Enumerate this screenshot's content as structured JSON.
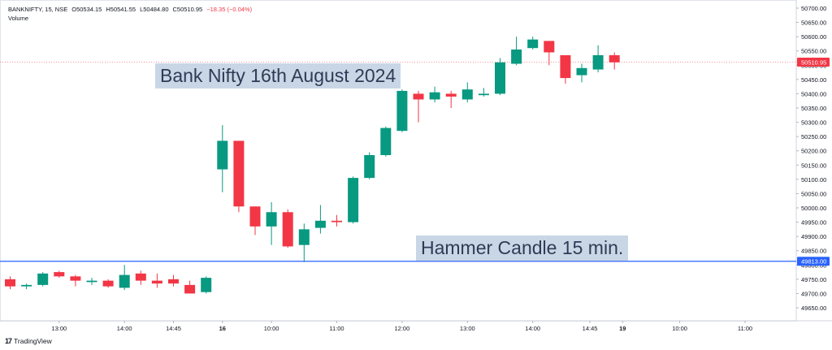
{
  "header": {
    "symbol": "BANKNIFTY, 15, NSE",
    "open": "O50534.15",
    "high": "H50541.55",
    "low": "L50484.80",
    "close": "C50510.95",
    "change": "−18.35 (−0.04%)",
    "volume_label": "Volume"
  },
  "annotations": {
    "title": "Bank Nifty 16th August 2024",
    "hammer": "Hammer Candle 15 min."
  },
  "branding": {
    "logo_text": "TradingView",
    "logo_mark": "17"
  },
  "colors": {
    "up": "#089981",
    "down": "#f23645",
    "support_line": "#2962ff",
    "price_tag": "#f23645",
    "level_tag": "#2962ff",
    "banner_bg": "#c9d6e6"
  },
  "chart_data": {
    "type": "candlestick",
    "ylim": [
      49600,
      50700
    ],
    "y_ticks": [
      "49650.00",
      "49700.00",
      "49750.00",
      "49800.00",
      "49850.00",
      "49900.00",
      "49950.00",
      "50000.00",
      "50050.00",
      "50100.00",
      "50150.00",
      "50200.00",
      "50250.00",
      "50300.00",
      "50350.00",
      "50400.00",
      "50450.00",
      "50500.00",
      "50550.00",
      "50600.00",
      "50650.00",
      "50700.00"
    ],
    "x_ticks": [
      "13:00",
      "14:00",
      "14:45",
      "16",
      "10:00",
      "11:00",
      "12:00",
      "13:00",
      "14:00",
      "14:45",
      "19",
      "10:00",
      "11:00"
    ],
    "x_tick_slots": [
      3,
      7,
      10,
      13,
      16,
      20,
      24,
      28,
      32,
      35.5,
      37.5,
      41,
      45
    ],
    "x_tick_bold": [
      "16",
      "19"
    ],
    "last_price": "50510.95",
    "horizontal_line": {
      "value": 49813,
      "label": "49813.00"
    },
    "candles": [
      {
        "o": 49750,
        "h": 49760,
        "l": 49715,
        "c": 49725
      },
      {
        "o": 49725,
        "h": 49735,
        "l": 49715,
        "c": 49730
      },
      {
        "o": 49730,
        "h": 49775,
        "l": 49725,
        "c": 49770
      },
      {
        "o": 49775,
        "h": 49780,
        "l": 49755,
        "c": 49760
      },
      {
        "o": 49760,
        "h": 49765,
        "l": 49725,
        "c": 49745
      },
      {
        "o": 49740,
        "h": 49755,
        "l": 49730,
        "c": 49745
      },
      {
        "o": 49745,
        "h": 49750,
        "l": 49720,
        "c": 49725
      },
      {
        "o": 49720,
        "h": 49800,
        "l": 49712,
        "c": 49765
      },
      {
        "o": 49770,
        "h": 49780,
        "l": 49730,
        "c": 49745
      },
      {
        "o": 49745,
        "h": 49770,
        "l": 49720,
        "c": 49735
      },
      {
        "o": 49750,
        "h": 49765,
        "l": 49725,
        "c": 49735
      },
      {
        "o": 49730,
        "h": 49745,
        "l": 49700,
        "c": 49700
      },
      {
        "o": 49705,
        "h": 49760,
        "l": 49700,
        "c": 49755
      },
      {
        "o": 50135,
        "h": 50290,
        "l": 50055,
        "c": 50235
      },
      {
        "o": 50235,
        "h": 50235,
        "l": 49985,
        "c": 50005
      },
      {
        "o": 50005,
        "h": 50005,
        "l": 49905,
        "c": 49935
      },
      {
        "o": 49935,
        "h": 50020,
        "l": 49870,
        "c": 49985
      },
      {
        "o": 49985,
        "h": 49995,
        "l": 49860,
        "c": 49865
      },
      {
        "o": 49870,
        "h": 49945,
        "l": 49810,
        "c": 49925
      },
      {
        "o": 49930,
        "h": 50010,
        "l": 49910,
        "c": 49955
      },
      {
        "o": 49955,
        "h": 49975,
        "l": 49935,
        "c": 49950
      },
      {
        "o": 49950,
        "h": 50110,
        "l": 49945,
        "c": 50105
      },
      {
        "o": 50105,
        "h": 50195,
        "l": 50100,
        "c": 50185
      },
      {
        "o": 50185,
        "h": 50285,
        "l": 50180,
        "c": 50280
      },
      {
        "o": 50270,
        "h": 50415,
        "l": 50265,
        "c": 50410
      },
      {
        "o": 50400,
        "h": 50410,
        "l": 50300,
        "c": 50380
      },
      {
        "o": 50380,
        "h": 50425,
        "l": 50370,
        "c": 50405
      },
      {
        "o": 50400,
        "h": 50410,
        "l": 50350,
        "c": 50390
      },
      {
        "o": 50380,
        "h": 50440,
        "l": 50370,
        "c": 50415
      },
      {
        "o": 50395,
        "h": 50420,
        "l": 50390,
        "c": 50400
      },
      {
        "o": 50400,
        "h": 50525,
        "l": 50395,
        "c": 50510
      },
      {
        "o": 50505,
        "h": 50600,
        "l": 50500,
        "c": 50555
      },
      {
        "o": 50560,
        "h": 50600,
        "l": 50555,
        "c": 50590
      },
      {
        "o": 50585,
        "h": 50585,
        "l": 50500,
        "c": 50545
      },
      {
        "o": 50535,
        "h": 50535,
        "l": 50435,
        "c": 50455
      },
      {
        "o": 50465,
        "h": 50505,
        "l": 50440,
        "c": 50490
      },
      {
        "o": 50485,
        "h": 50570,
        "l": 50475,
        "c": 50535
      },
      {
        "o": 50535,
        "h": 50545,
        "l": 50485,
        "c": 50510
      }
    ]
  }
}
